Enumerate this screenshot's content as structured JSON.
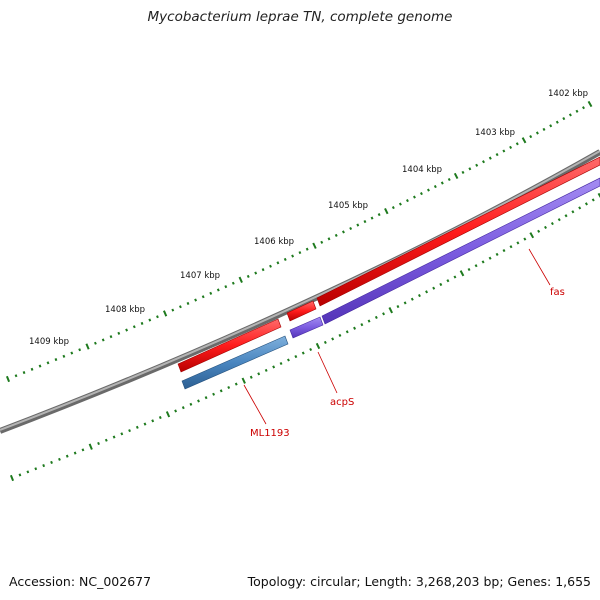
{
  "title": "Mycobacterium leprae TN, complete genome",
  "footer": {
    "accession": "Accession: NC_002677",
    "stats": "Topology: circular; Length: 3,268,203 bp; Genes: 1,655"
  },
  "scale": {
    "labels": [
      "1402 kbp",
      "1403 kbp",
      "1404 kbp",
      "1405 kbp",
      "1406 kbp",
      "1407 kbp",
      "1408 kbp",
      "1409 kbp"
    ]
  },
  "genes": [
    {
      "name": "fas",
      "strand": "reverse",
      "color": "#7b5ce0"
    },
    {
      "name": "acpS",
      "strand": "reverse",
      "color": "#7b5ce0"
    },
    {
      "name": "ML1193",
      "strand": "reverse",
      "color": "#4a86c0"
    }
  ],
  "colors": {
    "backbone": "#8c8c8c",
    "forward_feature": "#ff2a2a",
    "ticks": "#1e7a1e",
    "label": "#cc0000"
  }
}
